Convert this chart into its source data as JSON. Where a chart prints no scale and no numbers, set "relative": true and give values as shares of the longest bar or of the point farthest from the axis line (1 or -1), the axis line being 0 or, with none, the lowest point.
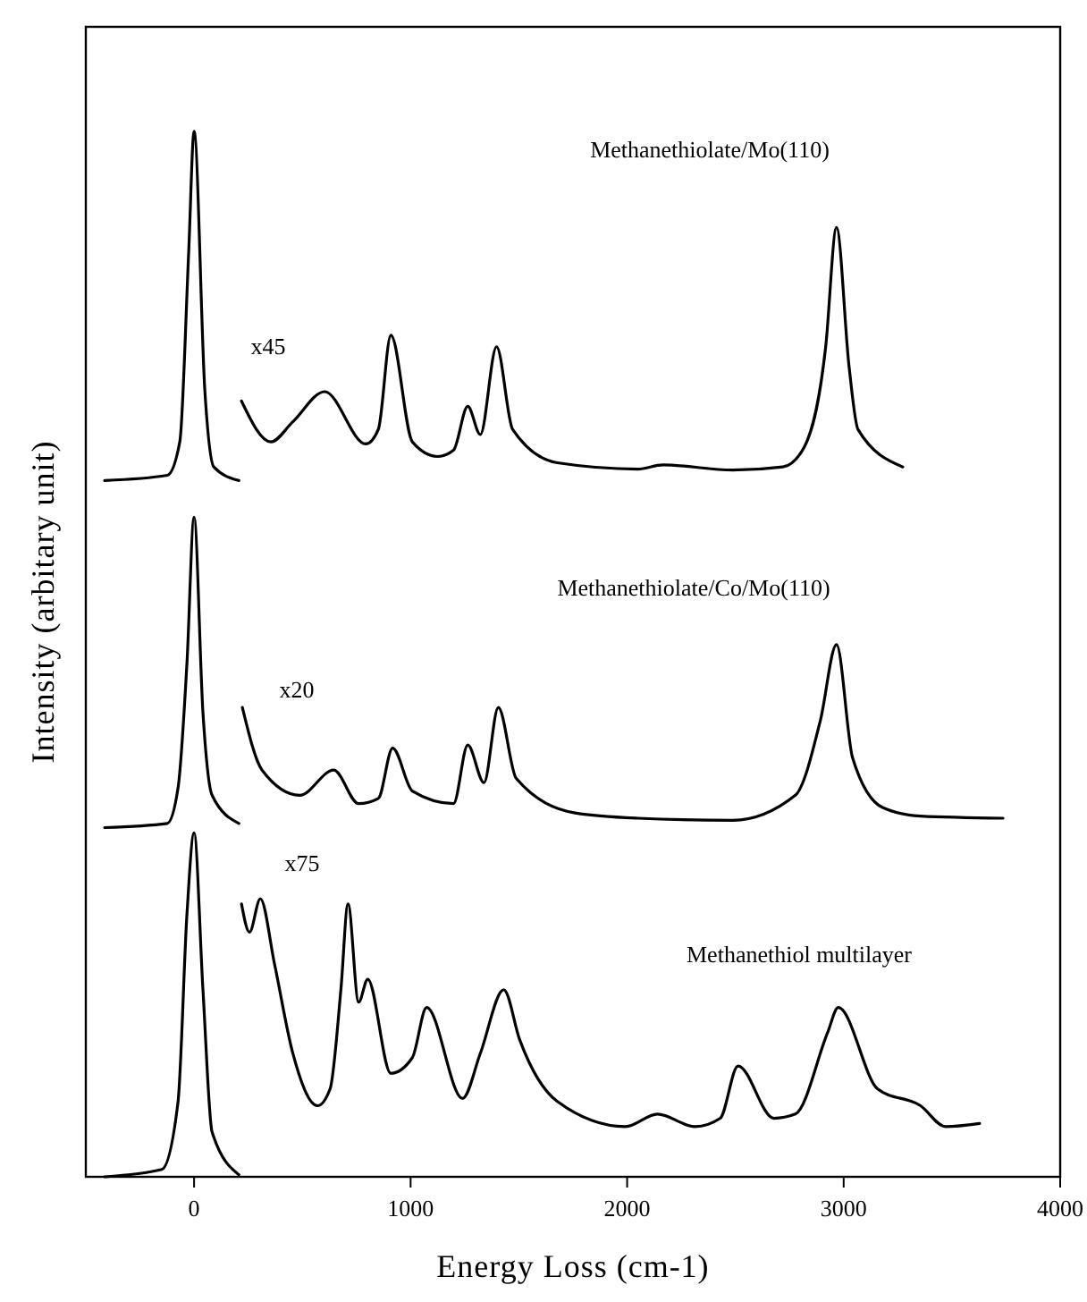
{
  "chart_data": {
    "type": "line",
    "relative": true,
    "xlabel": "Energy Loss (cm-1)",
    "ylabel": "Intensity (arbitary unit)",
    "xlim": [
      -500,
      4000
    ],
    "xticks": [
      0,
      1000,
      2000,
      3000,
      4000
    ],
    "tick_labels": "x",
    "grid": false,
    "marker": "none",
    "series": [
      {
        "name": "Methanethiolate/Mo(110)",
        "color": "#000000",
        "x": [
          -413,
          -124,
          -66,
          -25,
          0,
          50,
          91,
          207,
          null,
          219,
          355,
          455,
          603,
          793,
          851,
          909,
          1008,
          1124,
          1198,
          1264,
          1322,
          1397,
          1471,
          1678,
          2050,
          2165,
          2488,
          2719,
          2818,
          2917,
          2967,
          3025,
          3066,
          3273
        ],
        "values": [
          0.666,
          0.671,
          0.703,
          0.884,
          1.0,
          0.751,
          0.679,
          0.666,
          null,
          0.742,
          0.703,
          0.722,
          0.751,
          0.701,
          0.715,
          0.805,
          0.703,
          0.689,
          0.695,
          0.737,
          0.71,
          0.794,
          0.715,
          0.683,
          0.677,
          0.681,
          0.676,
          0.679,
          0.698,
          0.794,
          0.908,
          0.775,
          0.715,
          0.679
        ]
      },
      {
        "name": "Methanethiolate/Co/Mo(110)",
        "color": "#000000",
        "x": [
          -413,
          -124,
          -74,
          -33,
          0,
          41,
          83,
          207,
          null,
          223,
          314,
          488,
          645,
          760,
          851,
          917,
          1008,
          1198,
          1264,
          1339,
          1405,
          1488,
          1760,
          2050,
          2488,
          2777,
          2893,
          2967,
          3041,
          3182,
          3355,
          3736
        ],
        "values": [
          0.334,
          0.338,
          0.372,
          0.491,
          0.631,
          0.444,
          0.365,
          0.338,
          null,
          0.449,
          0.389,
          0.365,
          0.389,
          0.357,
          0.362,
          0.41,
          0.369,
          0.357,
          0.413,
          0.377,
          0.449,
          0.381,
          0.348,
          0.343,
          0.341,
          0.365,
          0.437,
          0.509,
          0.401,
          0.353,
          0.345,
          0.343
        ]
      },
      {
        "name": "Methanethiol multilayer",
        "color": "#000000",
        "x": [
          -413,
          -149,
          -74,
          -33,
          0,
          41,
          83,
          207,
          null,
          219,
          256,
          306,
          372,
          455,
          570,
          628,
          678,
          711,
          760,
          802,
          909,
          1008,
          1074,
          1240,
          1322,
          1430,
          1504,
          1678,
          1992,
          2140,
          2314,
          2430,
          2512,
          2678,
          2777,
          2926,
          2975,
          3157,
          3355,
          3471,
          3628
        ],
        "values": [
          0,
          0.007,
          0.072,
          0.251,
          0.329,
          0.179,
          0.043,
          0.002,
          null,
          0.261,
          0.234,
          0.266,
          0.203,
          0.119,
          0.068,
          0.084,
          0.179,
          0.261,
          0.167,
          0.189,
          0.099,
          0.114,
          0.162,
          0.075,
          0.118,
          0.179,
          0.131,
          0.072,
          0.048,
          0.06,
          0.048,
          0.056,
          0.106,
          0.056,
          0.06,
          0.138,
          0.162,
          0.084,
          0.068,
          0.048,
          0.051
        ]
      }
    ],
    "annotations": [
      "x45",
      "x20",
      "x75"
    ]
  }
}
